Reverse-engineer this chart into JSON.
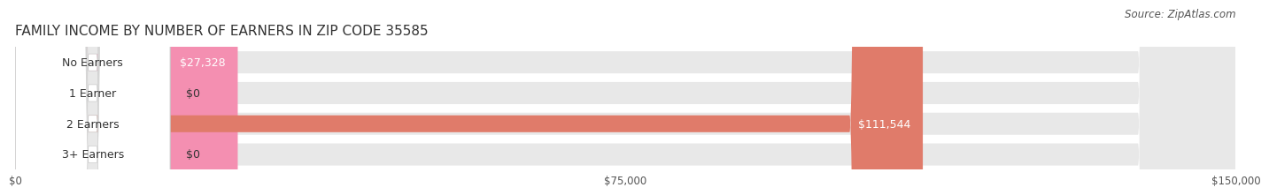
{
  "title": "FAMILY INCOME BY NUMBER OF EARNERS IN ZIP CODE 35585",
  "source": "Source: ZipAtlas.com",
  "categories": [
    "No Earners",
    "1 Earner",
    "2 Earners",
    "3+ Earners"
  ],
  "values": [
    27328,
    0,
    111544,
    0
  ],
  "bar_colors": [
    "#f48fb1",
    "#f9c784",
    "#e07b6a",
    "#a8c8e8"
  ],
  "bar_bg_color": "#e8e8e8",
  "label_bg_color": "#ffffff",
  "label_text_color": "#333333",
  "value_text_color": "#333333",
  "value_inside_color": "#ffffff",
  "xlim": [
    0,
    150000
  ],
  "xticks": [
    0,
    75000,
    150000
  ],
  "xtick_labels": [
    "$0",
    "$75,000",
    "$150,000"
  ],
  "title_fontsize": 11,
  "source_fontsize": 8.5,
  "label_fontsize": 9,
  "value_fontsize": 9,
  "fig_width": 14.06,
  "fig_height": 2.32,
  "background_color": "#ffffff"
}
